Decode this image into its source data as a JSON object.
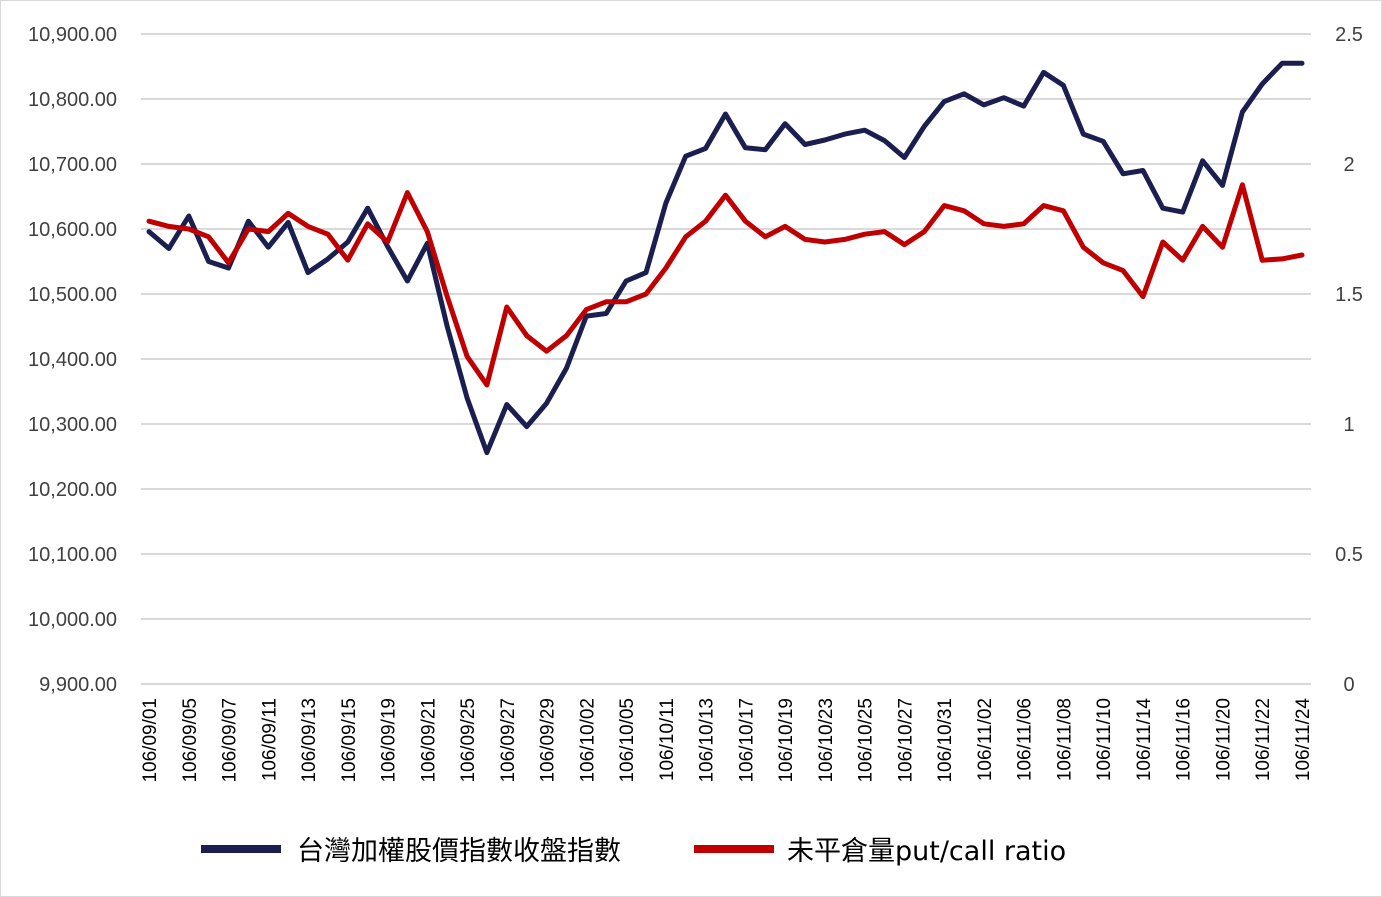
{
  "chart_data": {
    "type": "line",
    "x": [
      "106/09/01",
      "106/09/04",
      "106/09/05",
      "106/09/06",
      "106/09/07",
      "106/09/08",
      "106/09/11",
      "106/09/12",
      "106/09/13",
      "106/09/14",
      "106/09/15",
      "106/09/18",
      "106/09/19",
      "106/09/20",
      "106/09/21",
      "106/09/22",
      "106/09/25",
      "106/09/26",
      "106/09/27",
      "106/09/28",
      "106/09/29",
      "106/09/30",
      "106/10/02",
      "106/10/03",
      "106/10/05",
      "106/10/06",
      "106/10/11",
      "106/10/12",
      "106/10/13",
      "106/10/16",
      "106/10/17",
      "106/10/18",
      "106/10/19",
      "106/10/20",
      "106/10/23",
      "106/10/24",
      "106/10/25",
      "106/10/26",
      "106/10/27",
      "106/10/30",
      "106/10/31",
      "106/11/01",
      "106/11/02",
      "106/11/03",
      "106/11/06",
      "106/11/07",
      "106/11/08",
      "106/11/09",
      "106/11/10",
      "106/11/13",
      "106/11/14",
      "106/11/15",
      "106/11/16",
      "106/11/17",
      "106/11/20",
      "106/11/21",
      "106/11/22",
      "106/11/23",
      "106/11/24"
    ],
    "x_tick_labels": [
      "106/09/01",
      "106/09/05",
      "106/09/07",
      "106/09/11",
      "106/09/13",
      "106/09/15",
      "106/09/19",
      "106/09/21",
      "106/09/25",
      "106/09/27",
      "106/09/29",
      "106/10/02",
      "106/10/05",
      "106/10/11",
      "106/10/13",
      "106/10/17",
      "106/10/19",
      "106/10/23",
      "106/10/25",
      "106/10/27",
      "106/10/31",
      "106/11/02",
      "106/11/06",
      "106/11/08",
      "106/11/10",
      "106/11/14",
      "106/11/16",
      "106/11/20",
      "106/11/22",
      "106/11/24"
    ],
    "series": [
      {
        "name": "台灣加權股價指數收盤指數",
        "axis": "left",
        "color": "#1b1f4f",
        "values": [
          10596,
          10570,
          10620,
          10550,
          10540,
          10612,
          10572,
          10610,
          10533,
          10554,
          10580,
          10632,
          10573,
          10520,
          10578,
          10450,
          10340,
          10256,
          10330,
          10296,
          10332,
          10386,
          10466,
          10470,
          10520,
          10533,
          10640,
          10712,
          10724,
          10777,
          10725,
          10722,
          10762,
          10730,
          10737,
          10746,
          10752,
          10736,
          10710,
          10758,
          10796,
          10808,
          10791,
          10802,
          10789,
          10841,
          10821,
          10746,
          10735,
          10685,
          10690,
          10632,
          10626,
          10705,
          10667,
          10780,
          10823,
          10855,
          10855
        ]
      },
      {
        "name": "未平倉量put/call ratio",
        "axis": "right",
        "color": "#c00000",
        "values": [
          1.78,
          1.76,
          1.75,
          1.72,
          1.62,
          1.75,
          1.74,
          1.81,
          1.76,
          1.73,
          1.63,
          1.77,
          1.7,
          1.89,
          1.74,
          1.49,
          1.26,
          1.15,
          1.45,
          1.34,
          1.28,
          1.34,
          1.44,
          1.47,
          1.47,
          1.5,
          1.6,
          1.72,
          1.78,
          1.88,
          1.78,
          1.72,
          1.76,
          1.71,
          1.7,
          1.71,
          1.73,
          1.74,
          1.69,
          1.74,
          1.84,
          1.82,
          1.77,
          1.76,
          1.77,
          1.84,
          1.82,
          1.68,
          1.62,
          1.59,
          1.49,
          1.7,
          1.63,
          1.76,
          1.68,
          1.92,
          1.63,
          1.635,
          1.65
        ]
      }
    ],
    "y_left": {
      "min": 9900,
      "max": 10900,
      "step": 100,
      "tick_labels": [
        "9,900.00",
        "10,000.00",
        "10,100.00",
        "10,200.00",
        "10,300.00",
        "10,400.00",
        "10,500.00",
        "10,600.00",
        "10,700.00",
        "10,800.00",
        "10,900.00"
      ]
    },
    "y_right": {
      "min": 0,
      "max": 2.5,
      "step": 0.5,
      "tick_labels": [
        "0",
        "0.5",
        "1",
        "1.5",
        "2",
        "2.5"
      ]
    },
    "grid": true,
    "legend_position": "bottom"
  }
}
